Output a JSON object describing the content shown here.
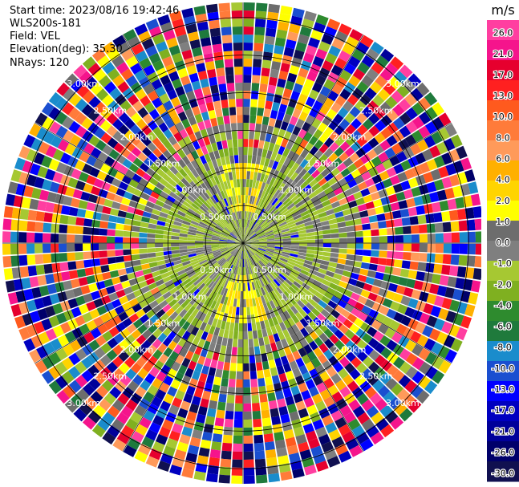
{
  "info": {
    "start_time": "Start time: 2023/08/16 19:42:46",
    "site": "WLS200s-181",
    "field": "Field: VEL",
    "elevation": "Elevation(deg): 35.30",
    "nrays": "NRays: 120"
  },
  "chart_data": {
    "type": "heatmap",
    "projection": "polar-ppi",
    "field": "VEL",
    "units": "m/s",
    "n_rays": 120,
    "range_rings_km": [
      0.5,
      1.0,
      1.5,
      2.0,
      2.5,
      3.0
    ],
    "ring_labels": [
      "0.50km",
      "1.00km",
      "1.50km",
      "2.00km",
      "2.50km",
      "3.00km"
    ],
    "colorbar": {
      "title": "m/s",
      "ticks": [
        "26.0",
        "21.0",
        "17.0",
        "13.0",
        "10.0",
        "8.0",
        "6.0",
        "4.0",
        "2.0",
        "1.0",
        "0.0",
        "-1.0",
        "-2.0",
        "-4.0",
        "-6.0",
        "-8.0",
        "-10.0",
        "-13.0",
        "-17.0",
        "-21.0",
        "-26.0",
        "-30.0"
      ],
      "colors": [
        "#ff3ea0",
        "#f5148c",
        "#e6002e",
        "#ff2020",
        "#ff5a1e",
        "#ff7b3a",
        "#ff9a5a",
        "#ffb000",
        "#ffd400",
        "#ffff00",
        "#6d6d6d",
        "#7f7f7f",
        "#a6c832",
        "#7fb020",
        "#2e8b2e",
        "#1f7a3c",
        "#1a8ccc",
        "#1a4fd0",
        "#0000ff",
        "#0000c0",
        "#00009a",
        "#00006a",
        "#101050"
      ]
    },
    "description_values": {
      "inner_core_velocity_range": [
        -2.0,
        2.0
      ],
      "outer_noise_velocity_range": [
        -30.0,
        26.0
      ]
    }
  }
}
